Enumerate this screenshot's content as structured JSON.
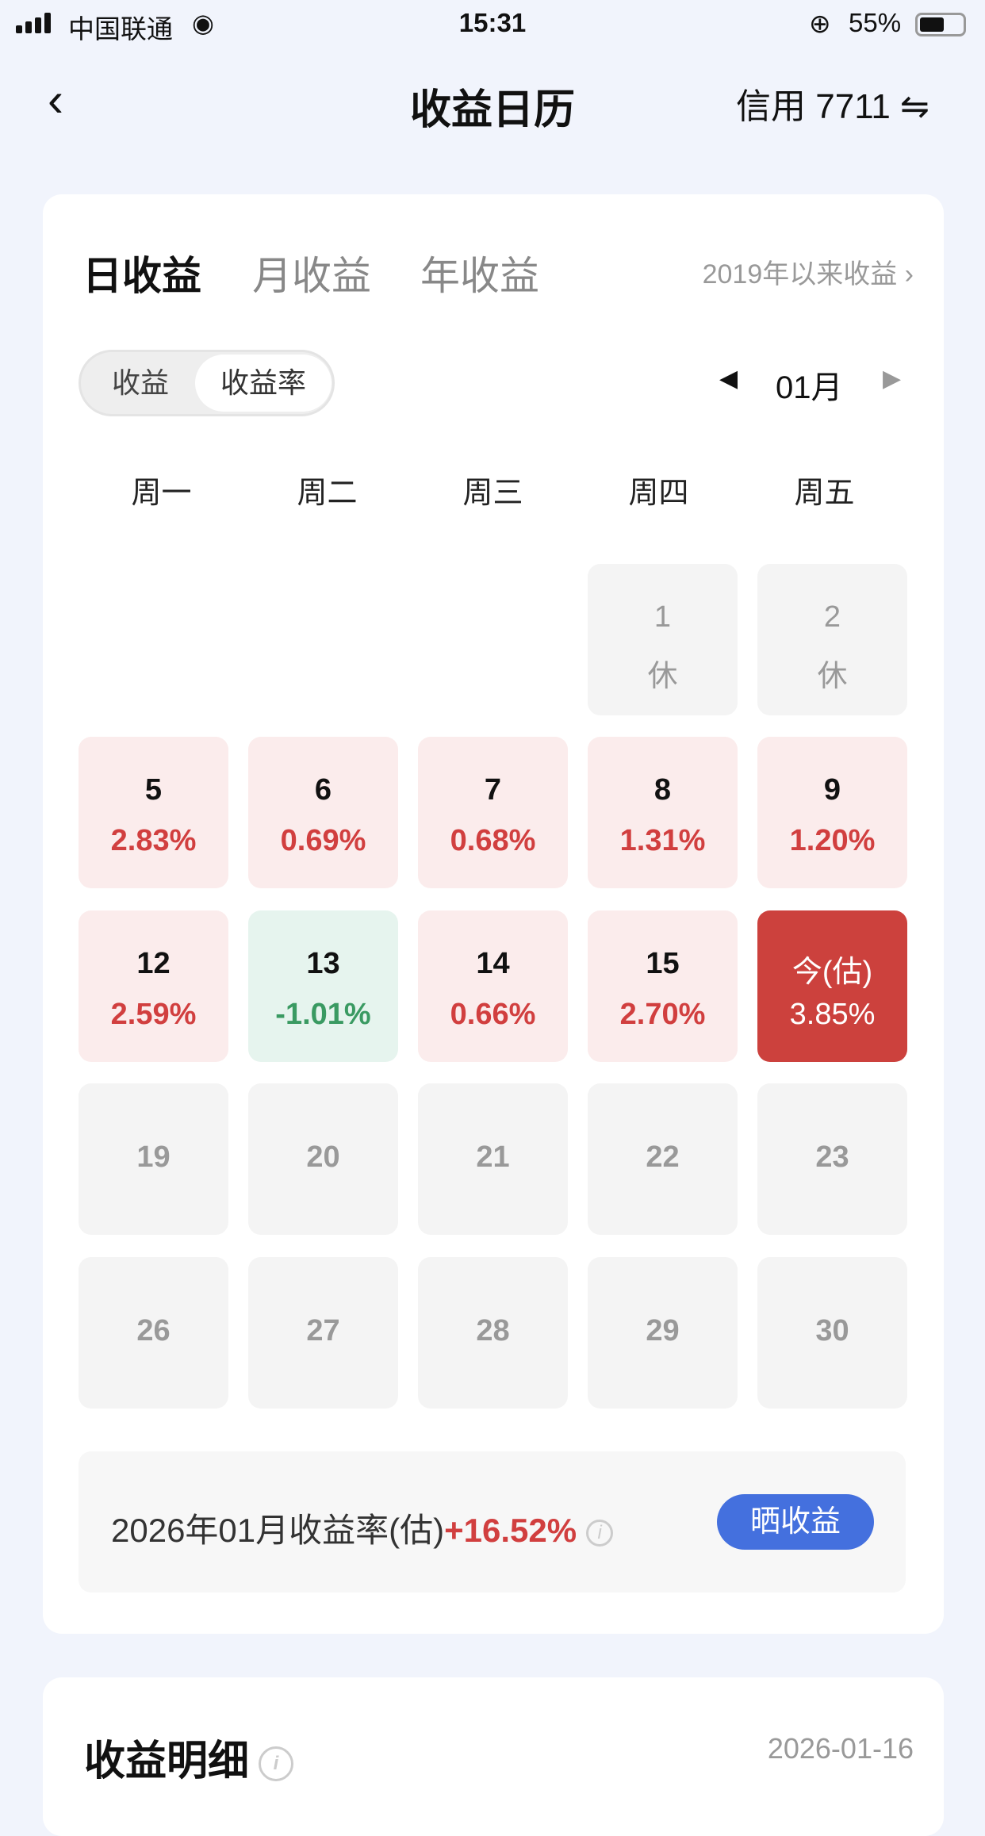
{
  "status_bar": {
    "carrier": "中国联通",
    "time": "15:31",
    "battery": "55%",
    "battery_level": 0.55
  },
  "header": {
    "title": "收益日历",
    "account": "信用 7711",
    "switch_icon": "⇋"
  },
  "tabs": [
    {
      "label": "日收益",
      "active": true
    },
    {
      "label": "月收益",
      "active": false
    },
    {
      "label": "年收益",
      "active": false
    }
  ],
  "since_link": "2019年以来收益 ›",
  "toggle": {
    "options": [
      "收益",
      "收益率"
    ],
    "selected": "收益率"
  },
  "month": {
    "label": "01月",
    "prev": "◀",
    "next": "▶"
  },
  "weekdays": [
    "周一",
    "周二",
    "周三",
    "周四",
    "周五"
  ],
  "calendar": [
    [
      null,
      null,
      null,
      {
        "day": "1",
        "value": "休",
        "type": "gray"
      },
      {
        "day": "2",
        "value": "休",
        "type": "gray"
      }
    ],
    [
      {
        "day": "5",
        "value": "2.83%",
        "type": "up"
      },
      {
        "day": "6",
        "value": "0.69%",
        "type": "up"
      },
      {
        "day": "7",
        "value": "0.68%",
        "type": "up"
      },
      {
        "day": "8",
        "value": "1.31%",
        "type": "up"
      },
      {
        "day": "9",
        "value": "1.20%",
        "type": "up"
      }
    ],
    [
      {
        "day": "12",
        "value": "2.59%",
        "type": "up"
      },
      {
        "day": "13",
        "value": "-1.01%",
        "type": "down"
      },
      {
        "day": "14",
        "value": "0.66%",
        "type": "up"
      },
      {
        "day": "15",
        "value": "2.70%",
        "type": "up"
      },
      {
        "day": "今(估)",
        "value": "3.85%",
        "type": "today"
      }
    ],
    [
      {
        "day": "19",
        "type": "gray"
      },
      {
        "day": "20",
        "type": "gray"
      },
      {
        "day": "21",
        "type": "gray"
      },
      {
        "day": "22",
        "type": "gray"
      },
      {
        "day": "23",
        "type": "gray"
      }
    ],
    [
      {
        "day": "26",
        "type": "gray"
      },
      {
        "day": "27",
        "type": "gray"
      },
      {
        "day": "28",
        "type": "gray"
      },
      {
        "day": "29",
        "type": "gray"
      },
      {
        "day": "30",
        "type": "gray"
      }
    ]
  ],
  "summary": {
    "label": "2026年01月收益率(估)",
    "value": "+16.52%",
    "info": "i",
    "share_button": "晒收益"
  },
  "detail": {
    "title": "收益明细",
    "info": "i",
    "date": "2026-01-16"
  },
  "colors": {
    "up": "#d13f3f",
    "down": "#3a9a62",
    "today": "#cc413d",
    "accent": "#4470de"
  }
}
